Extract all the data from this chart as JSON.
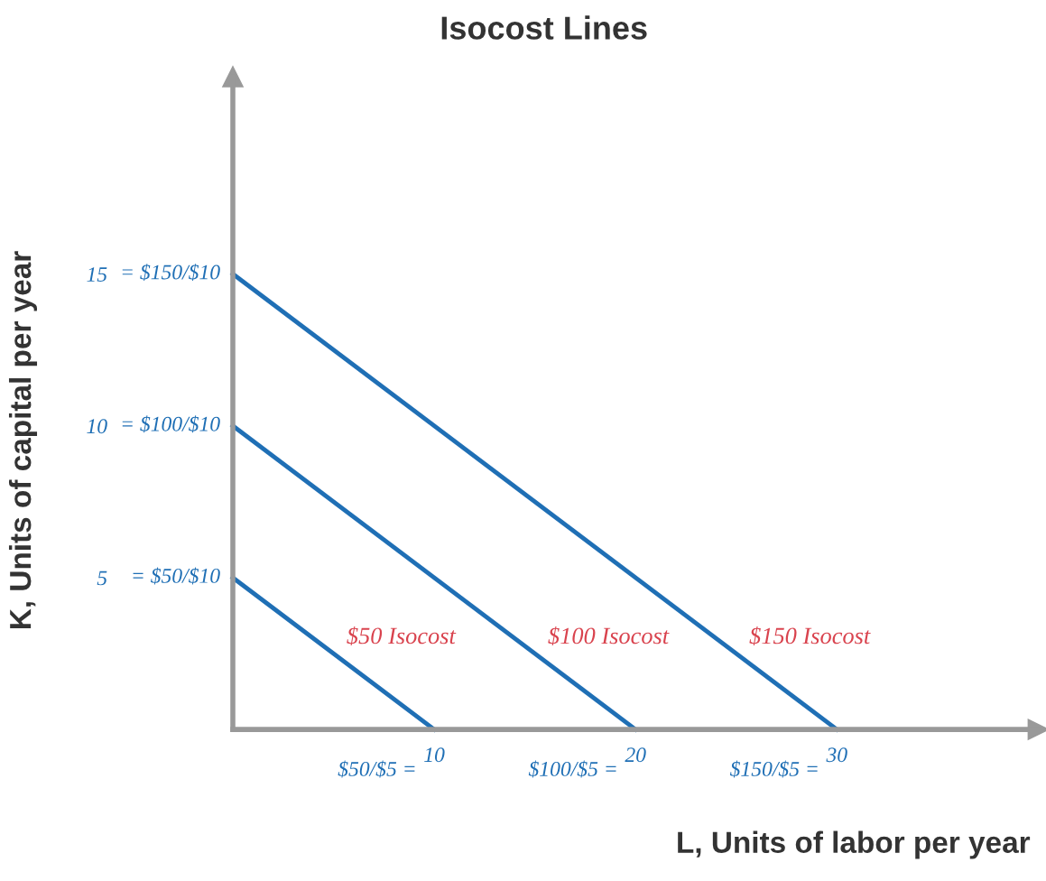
{
  "chart_data": {
    "type": "line",
    "title": "Isocost Lines",
    "xlabel": "L, Units of labor per year",
    "ylabel": "K, Units of capital per year",
    "series": [
      {
        "name": "$50 Isocost",
        "x": [
          0,
          10
        ],
        "values": [
          5,
          0
        ],
        "color": "#1f6fb5"
      },
      {
        "name": "$100 Isocost",
        "x": [
          0,
          20
        ],
        "values": [
          10,
          0
        ],
        "color": "#1f6fb5"
      },
      {
        "name": "$150 Isocost",
        "x": [
          0,
          30
        ],
        "values": [
          15,
          0
        ],
        "color": "#1f6fb5"
      }
    ],
    "xlim": [
      0,
      40
    ],
    "ylim": [
      0,
      21.5
    ],
    "xticks": [
      10,
      20,
      30
    ],
    "yticks": [
      5,
      10,
      15
    ],
    "annotations": [
      {
        "text": "$50/$5 =",
        "x": 10,
        "y": 0
      },
      {
        "text": "$100/$5 =",
        "x": 20,
        "y": 0
      },
      {
        "text": "$150/$5 =",
        "x": 30,
        "y": 0
      },
      {
        "text": "= $50/$10",
        "x": 0,
        "y": 5
      },
      {
        "text": "= $100/$10",
        "x": 0,
        "y": 10
      },
      {
        "text": "= $150/$10",
        "x": 0,
        "y": 15
      }
    ],
    "grid": false,
    "legend": false,
    "marker": "none",
    "line_style": "solid"
  }
}
